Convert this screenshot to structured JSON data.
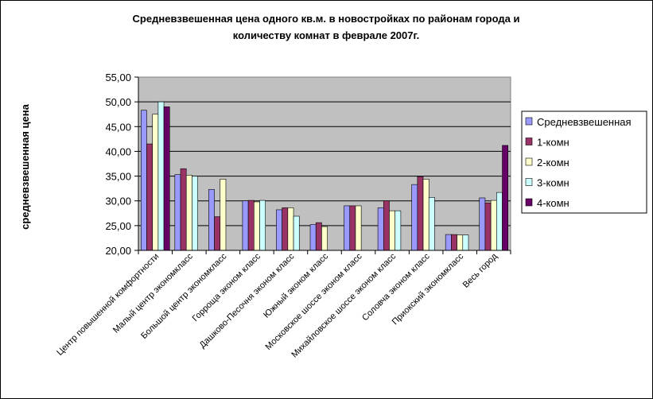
{
  "chart_data": {
    "type": "bar",
    "title_line1": "Средневзвешенная цена одного кв.м. в новостройках по районам города и",
    "title_line2": "количеству комнат в феврале 2007г.",
    "ylabel": "средневзвешенная цена",
    "xlabel": "",
    "ylim": [
      20,
      55
    ],
    "yticks": [
      "20,00",
      "25,00",
      "30,00",
      "35,00",
      "40,00",
      "45,00",
      "50,00",
      "55,00"
    ],
    "grid": true,
    "legend_position": "right",
    "plot_background": "#c0c0c0",
    "categories": [
      "Центр повышенной комфортности",
      "Малый центр экономкласс",
      "Большой центр экономкласс",
      "Горроща эконом класс",
      "Дашково-Песочня эконом класс",
      "Южный эконом класс",
      "Московское шоссе эконом класс",
      "Михайловское шоссе эконом класс",
      "Соловча эконом класс",
      "Приокский экономкласс",
      "Весь город"
    ],
    "series": [
      {
        "name": "Средневзвешенная",
        "color": "#9999ff",
        "values": [
          48.3,
          35.3,
          32.3,
          30.0,
          28.2,
          25.2,
          29.0,
          28.6,
          33.3,
          23.2,
          30.6
        ]
      },
      {
        "name": "1-комн",
        "color": "#993366",
        "values": [
          41.5,
          36.5,
          26.8,
          30.1,
          28.6,
          25.6,
          29.0,
          30.0,
          34.9,
          23.2,
          29.6
        ]
      },
      {
        "name": "2-комн",
        "color": "#ffffcc",
        "values": [
          47.5,
          35.2,
          34.4,
          29.8,
          28.6,
          24.8,
          29.0,
          28.0,
          34.4,
          23.1,
          30.1
        ]
      },
      {
        "name": "3-комн",
        "color": "#ccffff",
        "values": [
          50.0,
          35.0,
          null,
          30.1,
          26.9,
          null,
          null,
          28.0,
          30.7,
          23.1,
          31.7
        ]
      },
      {
        "name": "4-комн",
        "color": "#660066",
        "values": [
          49.0,
          null,
          null,
          null,
          null,
          null,
          null,
          null,
          null,
          null,
          41.2
        ]
      }
    ]
  }
}
